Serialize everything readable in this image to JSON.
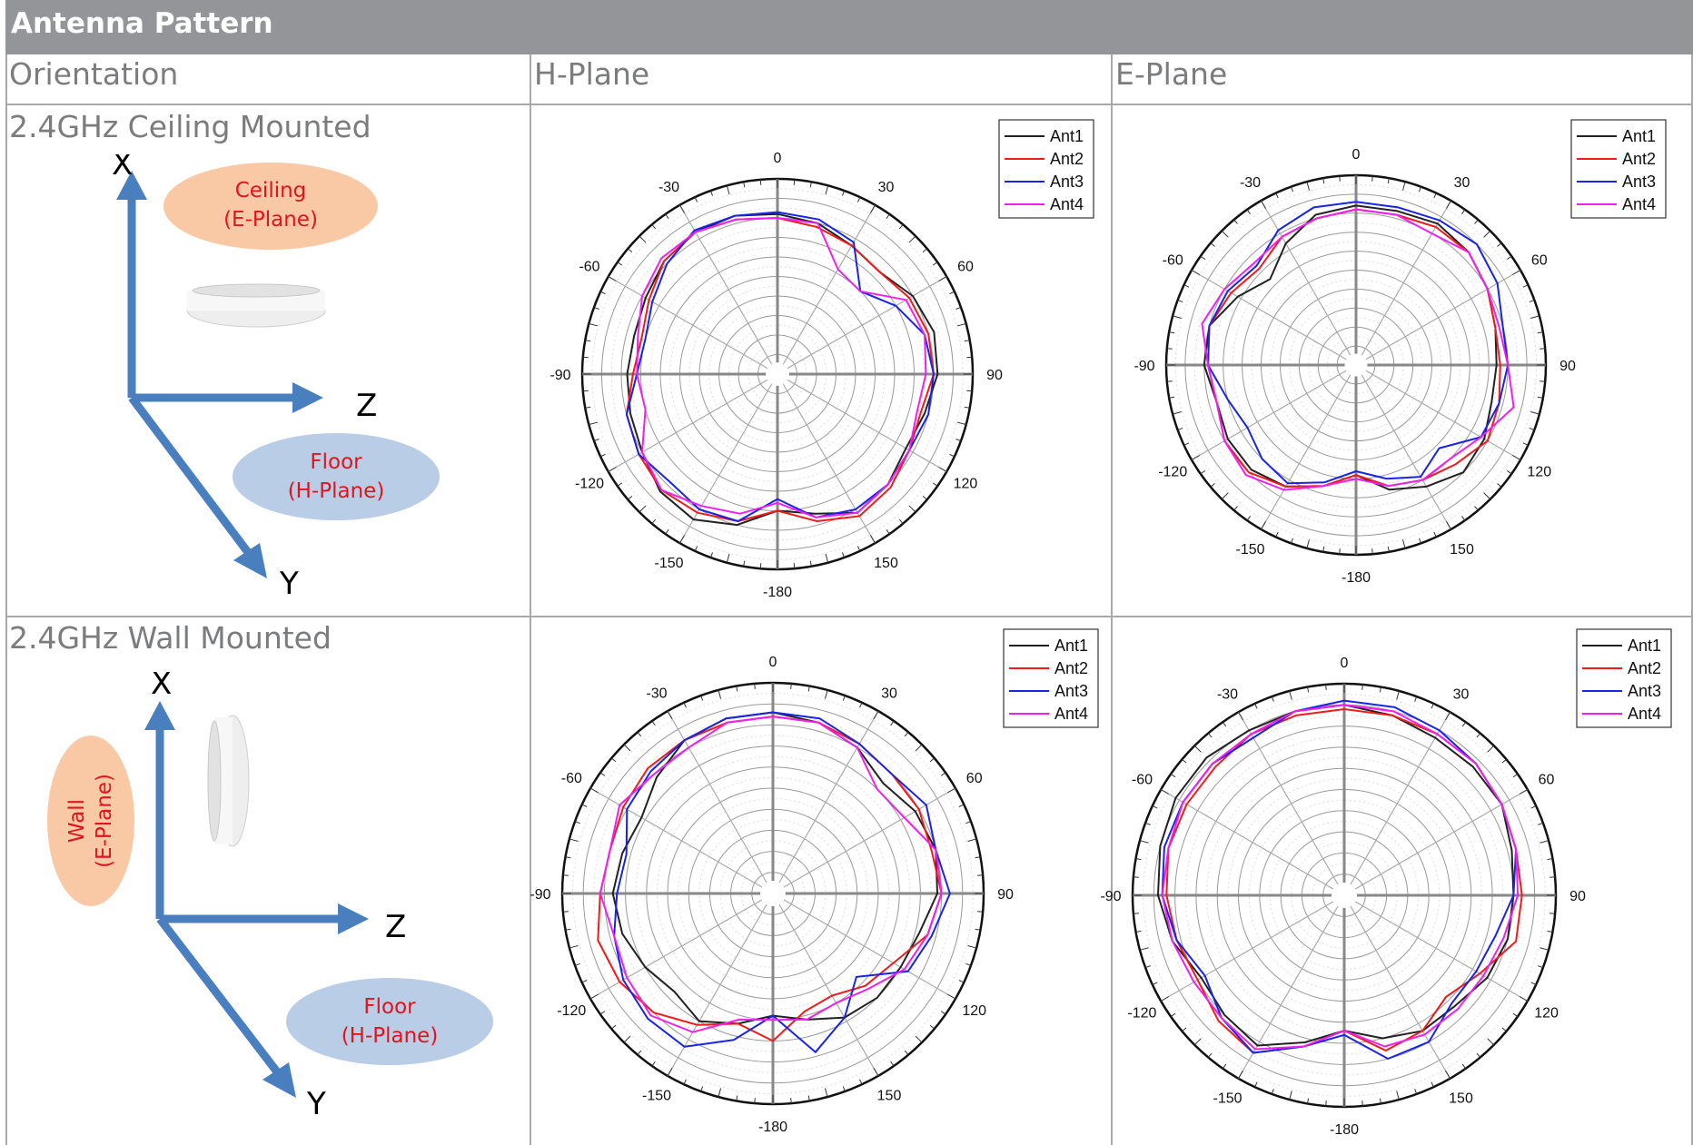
{
  "title": "Antenna Pattern",
  "headers": {
    "orientation": "Orientation",
    "h_plane": "H-Plane",
    "e_plane": "E-Plane"
  },
  "rows": [
    {
      "label": "2.4GHz Ceiling Mounted",
      "diagram": {
        "x_axis": "X",
        "z_axis": "Z",
        "y_axis": "Y",
        "ellipse1": [
          "Ceiling",
          "(E-Plane)"
        ],
        "ellipse2": [
          "Floor",
          "(H-Plane)"
        ]
      }
    },
    {
      "label": "2.4GHz Wall Mounted",
      "diagram": {
        "x_axis": "X",
        "z_axis": "Z",
        "y_axis": "Y",
        "ellipse1": [
          "Wall",
          "(E-Plane)"
        ],
        "ellipse2": [
          "Floor",
          "(H-Plane)"
        ]
      }
    }
  ],
  "colors": {
    "ant1": "#222222",
    "ant2": "#ee1c1c",
    "ant3": "#1a24e6",
    "ant4": "#f020f0",
    "e_plane_ellipse": "#f9c9a6",
    "h_plane_ellipse": "#b9cde6",
    "axis_arrow": "#4a7fbf",
    "label_red": "#e0141e",
    "header_bar": "#939598"
  },
  "chart_data": [
    {
      "type": "polar-line",
      "panel": "2.4GHz Ceiling Mounted / H-Plane",
      "angle_labels": [
        "0",
        "30",
        "60",
        "90",
        "120",
        "150",
        "-180",
        "-150",
        "-120",
        "-90",
        "-60",
        "-30"
      ],
      "theta_deg": [
        0,
        15,
        30,
        45,
        60,
        75,
        90,
        105,
        120,
        135,
        150,
        165,
        180,
        195,
        210,
        225,
        240,
        255,
        270,
        285,
        300,
        315,
        330,
        345
      ],
      "series": [
        {
          "name": "Ant1",
          "color": "#222222",
          "r": [
            0.82,
            0.8,
            0.76,
            0.74,
            0.8,
            0.83,
            0.82,
            0.78,
            0.76,
            0.8,
            0.82,
            0.74,
            0.7,
            0.8,
            0.86,
            0.85,
            0.8,
            0.78,
            0.77,
            0.76,
            0.78,
            0.82,
            0.84,
            0.84
          ]
        },
        {
          "name": "Ant2",
          "color": "#ee1c1c",
          "r": [
            0.8,
            0.78,
            0.76,
            0.74,
            0.78,
            0.8,
            0.8,
            0.76,
            0.78,
            0.82,
            0.84,
            0.78,
            0.7,
            0.78,
            0.82,
            0.84,
            0.82,
            0.8,
            0.74,
            0.72,
            0.76,
            0.82,
            0.84,
            0.82
          ]
        },
        {
          "name": "Ant3",
          "color": "#1a24e6",
          "r": [
            0.83,
            0.82,
            0.78,
            0.6,
            0.7,
            0.78,
            0.8,
            0.8,
            0.78,
            0.8,
            0.8,
            0.76,
            0.64,
            0.78,
            0.8,
            0.78,
            0.82,
            0.8,
            0.72,
            0.7,
            0.74,
            0.8,
            0.85,
            0.84
          ]
        },
        {
          "name": "Ant4",
          "color": "#f020f0",
          "r": [
            0.8,
            0.8,
            0.62,
            0.6,
            0.76,
            0.78,
            0.76,
            0.74,
            0.78,
            0.8,
            0.82,
            0.76,
            0.66,
            0.74,
            0.78,
            0.84,
            0.8,
            0.7,
            0.72,
            0.74,
            0.8,
            0.84,
            0.84,
            0.82
          ]
        }
      ]
    },
    {
      "type": "polar-line",
      "panel": "2.4GHz Ceiling Mounted / E-Plane",
      "angle_labels": [
        "0",
        "30",
        "60",
        "90",
        "120",
        "150",
        "-180",
        "-150",
        "-120",
        "-90",
        "-60",
        "-30"
      ],
      "theta_deg": [
        0,
        15,
        30,
        45,
        60,
        75,
        90,
        105,
        120,
        135,
        150,
        165,
        180,
        195,
        210,
        225,
        240,
        255,
        270,
        285,
        300,
        315,
        330,
        345
      ],
      "series": [
        {
          "name": "Ant1",
          "color": "#222222",
          "r": [
            0.84,
            0.84,
            0.86,
            0.84,
            0.8,
            0.76,
            0.74,
            0.74,
            0.78,
            0.8,
            0.74,
            0.68,
            0.58,
            0.66,
            0.74,
            0.78,
            0.78,
            0.76,
            0.8,
            0.8,
            0.72,
            0.64,
            0.74,
            0.82
          ]
        },
        {
          "name": "Ant2",
          "color": "#ee1c1c",
          "r": [
            0.82,
            0.82,
            0.84,
            0.84,
            0.8,
            0.76,
            0.76,
            0.78,
            0.8,
            0.74,
            0.7,
            0.66,
            0.58,
            0.66,
            0.74,
            0.8,
            0.8,
            0.76,
            0.78,
            0.8,
            0.76,
            0.72,
            0.78,
            0.8
          ]
        },
        {
          "name": "Ant3",
          "color": "#1a24e6",
          "r": [
            0.86,
            0.86,
            0.88,
            0.9,
            0.86,
            0.8,
            0.8,
            0.78,
            0.76,
            0.62,
            0.68,
            0.62,
            0.56,
            0.64,
            0.72,
            0.7,
            0.66,
            0.7,
            0.78,
            0.8,
            0.78,
            0.74,
            0.82,
            0.86
          ]
        },
        {
          "name": "Ant4",
          "color": "#f020f0",
          "r": [
            0.82,
            0.82,
            0.8,
            0.84,
            0.8,
            0.78,
            0.8,
            0.86,
            0.76,
            0.7,
            0.7,
            0.66,
            0.6,
            0.66,
            0.76,
            0.82,
            0.8,
            0.76,
            0.78,
            0.84,
            0.8,
            0.76,
            0.78,
            0.8
          ]
        }
      ]
    },
    {
      "type": "polar-line",
      "panel": "2.4GHz Wall Mounted / H-Plane",
      "angle_labels": [
        "0",
        "30",
        "60",
        "90",
        "120",
        "150",
        "-180",
        "-150",
        "-120",
        "-90",
        "-60",
        "-30"
      ],
      "theta_deg": [
        0,
        15,
        30,
        45,
        60,
        75,
        90,
        105,
        120,
        135,
        150,
        165,
        180,
        195,
        210,
        225,
        240,
        255,
        270,
        285,
        300,
        315,
        330,
        345
      ],
      "series": [
        {
          "name": "Ant1",
          "color": "#222222",
          "r": [
            0.86,
            0.84,
            0.8,
            0.74,
            0.78,
            0.8,
            0.78,
            0.72,
            0.7,
            0.7,
            0.68,
            0.62,
            0.58,
            0.64,
            0.7,
            0.66,
            0.7,
            0.74,
            0.76,
            0.74,
            0.72,
            0.78,
            0.84,
            0.86
          ]
        },
        {
          "name": "Ant2",
          "color": "#ee1c1c",
          "r": [
            0.84,
            0.84,
            0.82,
            0.8,
            0.8,
            0.78,
            0.8,
            0.76,
            0.66,
            0.62,
            0.56,
            0.58,
            0.7,
            0.64,
            0.72,
            0.8,
            0.84,
            0.86,
            0.82,
            0.8,
            0.82,
            0.84,
            0.84,
            0.84
          ]
        },
        {
          "name": "Ant3",
          "color": "#1a24e6",
          "r": [
            0.86,
            0.86,
            0.82,
            0.8,
            0.84,
            0.8,
            0.84,
            0.78,
            0.74,
            0.56,
            0.68,
            0.78,
            0.58,
            0.72,
            0.84,
            0.84,
            0.82,
            0.78,
            0.74,
            0.72,
            0.8,
            0.82,
            0.84,
            0.86
          ]
        },
        {
          "name": "Ant4",
          "color": "#f020f0",
          "r": [
            0.84,
            0.84,
            0.8,
            0.7,
            0.72,
            0.8,
            0.8,
            0.76,
            0.72,
            0.64,
            0.6,
            0.62,
            0.6,
            0.62,
            0.76,
            0.82,
            0.8,
            0.78,
            0.82,
            0.8,
            0.84,
            0.8,
            0.8,
            0.84
          ]
        }
      ]
    },
    {
      "type": "polar-line",
      "panel": "2.4GHz Wall Mounted / E-Plane",
      "angle_labels": [
        "0",
        "30",
        "60",
        "90",
        "120",
        "150",
        "-180",
        "-150",
        "-120",
        "-90",
        "-60",
        "-30"
      ],
      "theta_deg": [
        0,
        15,
        30,
        45,
        60,
        75,
        90,
        105,
        120,
        135,
        150,
        165,
        180,
        195,
        210,
        225,
        240,
        255,
        270,
        285,
        300,
        315,
        330,
        345
      ],
      "series": [
        {
          "name": "Ant1",
          "color": "#222222",
          "r": [
            0.9,
            0.88,
            0.86,
            0.86,
            0.86,
            0.82,
            0.8,
            0.8,
            0.78,
            0.74,
            0.74,
            0.7,
            0.64,
            0.72,
            0.82,
            0.8,
            0.78,
            0.84,
            0.88,
            0.9,
            0.92,
            0.92,
            0.9,
            0.9
          ]
        },
        {
          "name": "Ant2",
          "color": "#ee1c1c",
          "r": [
            0.88,
            0.88,
            0.88,
            0.88,
            0.86,
            0.84,
            0.84,
            0.84,
            0.74,
            0.68,
            0.74,
            0.76,
            0.64,
            0.74,
            0.86,
            0.84,
            0.8,
            0.82,
            0.84,
            0.86,
            0.86,
            0.86,
            0.88,
            0.88
          ]
        },
        {
          "name": "Ant3",
          "color": "#1a24e6",
          "r": [
            0.92,
            0.92,
            0.9,
            0.88,
            0.86,
            0.84,
            0.8,
            0.74,
            0.72,
            0.72,
            0.8,
            0.8,
            0.66,
            0.74,
            0.86,
            0.82,
            0.76,
            0.82,
            0.86,
            0.88,
            0.88,
            0.88,
            0.86,
            0.9
          ]
        },
        {
          "name": "Ant4",
          "color": "#f020f0",
          "r": [
            0.9,
            0.9,
            0.88,
            0.88,
            0.86,
            0.84,
            0.82,
            0.78,
            0.76,
            0.76,
            0.76,
            0.74,
            0.64,
            0.74,
            0.84,
            0.82,
            0.82,
            0.84,
            0.86,
            0.86,
            0.88,
            0.88,
            0.88,
            0.9
          ]
        }
      ]
    }
  ]
}
